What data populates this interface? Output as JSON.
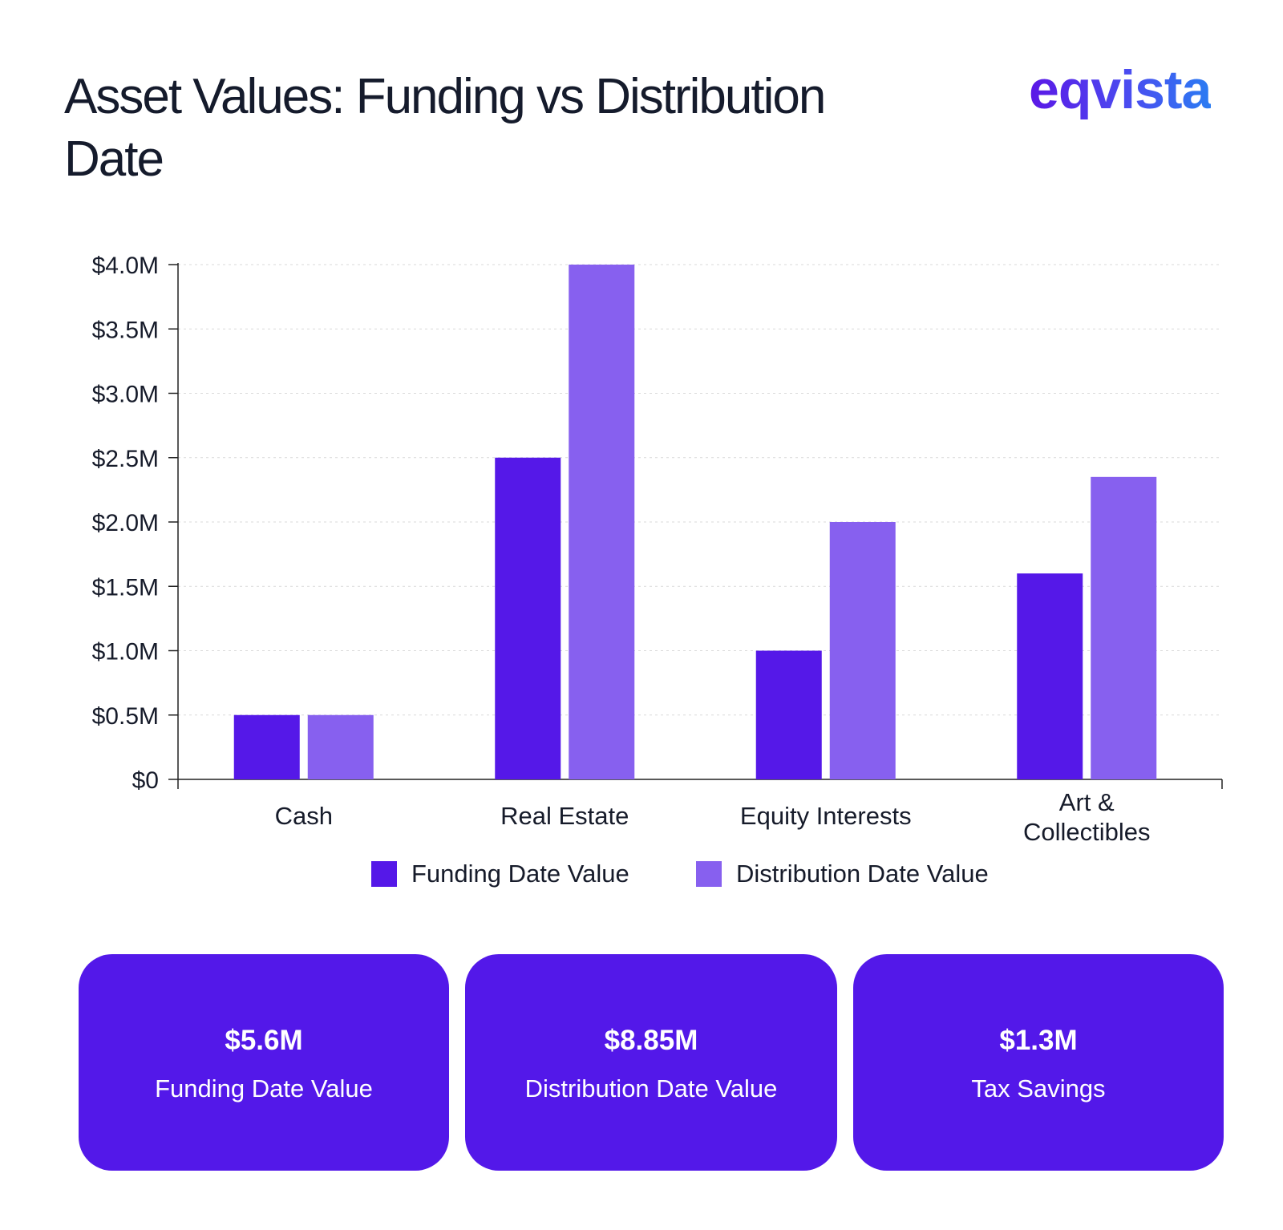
{
  "header": {
    "title": "Asset Values: Funding vs Distribution Date",
    "logo_text": "eqvista"
  },
  "colors": {
    "funding": "#5518e8",
    "distribution": "#8760ef",
    "card_bg": "#5318e9",
    "text": "#141b2d"
  },
  "chart_data": {
    "type": "bar",
    "categories": [
      "Cash",
      "Real Estate",
      "Equity Interests",
      "Art & Collectibles"
    ],
    "series": [
      {
        "name": "Funding Date Value",
        "values": [
          0.5,
          2.5,
          1.0,
          1.6
        ]
      },
      {
        "name": "Distribution Date Value",
        "values": [
          0.5,
          4.0,
          2.0,
          2.35
        ]
      }
    ],
    "ylim": [
      0,
      4.0
    ],
    "y_ticks": [
      0,
      0.5,
      1.0,
      1.5,
      2.0,
      2.5,
      3.0,
      3.5,
      4.0
    ],
    "y_tick_labels": [
      "$0",
      "$0.5M",
      "$1.0M",
      "$1.5M",
      "$2.0M",
      "$2.5M",
      "$3.0M",
      "$3.5M",
      "$4.0M"
    ],
    "grid": true,
    "legend": "bottom",
    "xlabel": "",
    "ylabel": ""
  },
  "summary_cards": [
    {
      "value": "$5.6M",
      "label": "Funding Date Value"
    },
    {
      "value": "$8.85M",
      "label": "Distribution Date Value"
    },
    {
      "value": "$1.3M",
      "label": "Tax Savings"
    }
  ]
}
